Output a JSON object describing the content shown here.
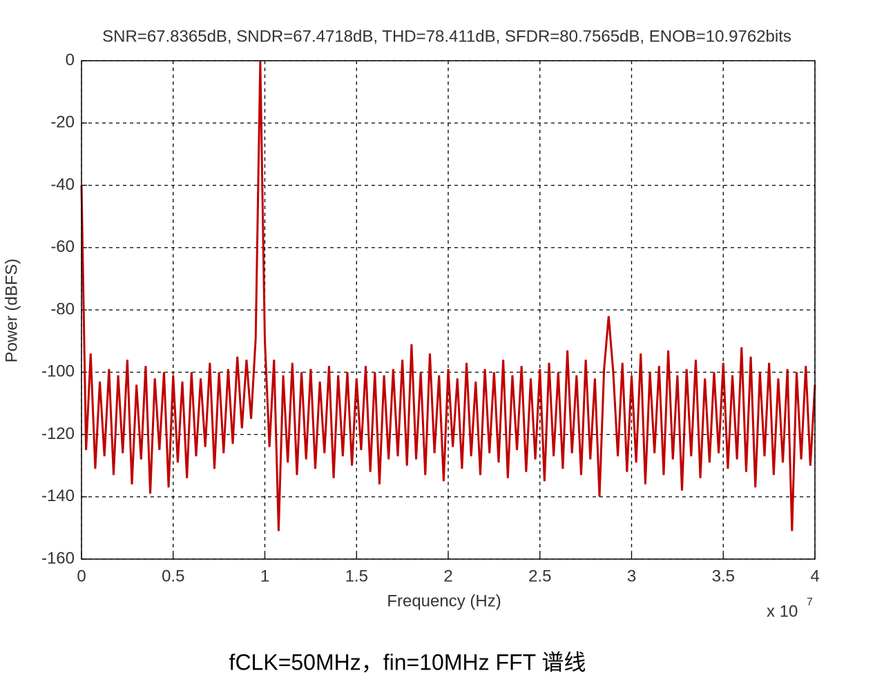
{
  "chart_data": {
    "type": "line",
    "title": "SNR=67.8365dB, SNDR=67.4718dB, THD=78.411dB, SFDR=80.7565dB, ENOB=10.9762bits",
    "xlabel": "Frequency (Hz)",
    "ylabel": "Power (dBFS)",
    "x_multiplier": "x 10",
    "x_multiplier_exponent": "7",
    "color": "#c00000",
    "grid": true,
    "xlim": [
      0,
      4
    ],
    "xticks": [
      0,
      0.5,
      1,
      1.5,
      2,
      2.5,
      3,
      3.5,
      4
    ],
    "ylim": [
      -160,
      0
    ],
    "yticks": [
      0,
      -20,
      -40,
      -60,
      -80,
      -100,
      -120,
      -140,
      -160
    ],
    "x": [
      0,
      0.025,
      0.05,
      0.075,
      0.1,
      0.125,
      0.15,
      0.175,
      0.2,
      0.225,
      0.25,
      0.275,
      0.3,
      0.325,
      0.35,
      0.375,
      0.4,
      0.425,
      0.45,
      0.475,
      0.5,
      0.525,
      0.55,
      0.575,
      0.6,
      0.625,
      0.65,
      0.675,
      0.7,
      0.725,
      0.75,
      0.775,
      0.8,
      0.825,
      0.85,
      0.875,
      0.9,
      0.925,
      0.95,
      0.975,
      1,
      1.025,
      1.05,
      1.075,
      1.1,
      1.125,
      1.15,
      1.175,
      1.2,
      1.225,
      1.25,
      1.275,
      1.3,
      1.325,
      1.35,
      1.375,
      1.4,
      1.425,
      1.45,
      1.475,
      1.5,
      1.525,
      1.55,
      1.575,
      1.6,
      1.625,
      1.65,
      1.675,
      1.7,
      1.725,
      1.75,
      1.775,
      1.8,
      1.825,
      1.85,
      1.875,
      1.9,
      1.925,
      1.95,
      1.975,
      2,
      2.025,
      2.05,
      2.075,
      2.1,
      2.125,
      2.15,
      2.175,
      2.2,
      2.225,
      2.25,
      2.275,
      2.3,
      2.325,
      2.35,
      2.375,
      2.4,
      2.425,
      2.45,
      2.475,
      2.5,
      2.525,
      2.55,
      2.575,
      2.6,
      2.625,
      2.65,
      2.675,
      2.7,
      2.725,
      2.75,
      2.775,
      2.8,
      2.825,
      2.85,
      2.875,
      2.9,
      2.925,
      2.95,
      2.975,
      3,
      3.025,
      3.05,
      3.075,
      3.1,
      3.125,
      3.15,
      3.175,
      3.2,
      3.225,
      3.25,
      3.275,
      3.3,
      3.325,
      3.35,
      3.375,
      3.4,
      3.425,
      3.45,
      3.475,
      3.5,
      3.525,
      3.55,
      3.575,
      3.6,
      3.625,
      3.65,
      3.675,
      3.7,
      3.725,
      3.75,
      3.775,
      3.8,
      3.825,
      3.85,
      3.875,
      3.9,
      3.925,
      3.95,
      3.975,
      4
    ],
    "values": [
      -40,
      -125,
      -94,
      -131,
      -103,
      -127,
      -99,
      -133,
      -101,
      -126,
      -96,
      -136,
      -104,
      -128,
      -98,
      -139,
      -102,
      -125,
      -100,
      -137,
      -101,
      -129,
      -103,
      -134,
      -100,
      -127,
      -102,
      -124,
      -97,
      -131,
      -100,
      -126,
      -99,
      -123,
      -95,
      -118,
      -96,
      -115,
      -89,
      0,
      -90,
      -124,
      -96,
      -151,
      -101,
      -129,
      -97,
      -133,
      -100,
      -128,
      -99,
      -131,
      -103,
      -126,
      -98,
      -134,
      -101,
      -127,
      -100,
      -130,
      -102,
      -125,
      -98,
      -132,
      -100,
      -136,
      -101,
      -128,
      -99,
      -127,
      -96,
      -130,
      -91,
      -128,
      -100,
      -133,
      -94,
      -126,
      -101,
      -135,
      -99,
      -124,
      -102,
      -131,
      -97,
      -127,
      -103,
      -133,
      -99,
      -126,
      -100,
      -129,
      -96,
      -134,
      -101,
      -125,
      -98,
      -132,
      -102,
      -128,
      -99,
      -135,
      -97,
      -127,
      -100,
      -131,
      -93,
      -126,
      -101,
      -133,
      -96,
      -128,
      -102,
      -140,
      -99,
      -82,
      -100,
      -127,
      -97,
      -132,
      -101,
      -129,
      -94,
      -136,
      -100,
      -126,
      -98,
      -133,
      -93,
      -128,
      -101,
      -138,
      -99,
      -127,
      -96,
      -134,
      -102,
      -129,
      -100,
      -126,
      -97,
      -131,
      -101,
      -128,
      -92,
      -132,
      -95,
      -137,
      -100,
      -127,
      -97,
      -133,
      -102,
      -129,
      -99,
      -151,
      -100,
      -128,
      -98,
      -130,
      -104
    ]
  },
  "caption": "fCLK=50MHz，fin=10MHz FFT  谱线"
}
